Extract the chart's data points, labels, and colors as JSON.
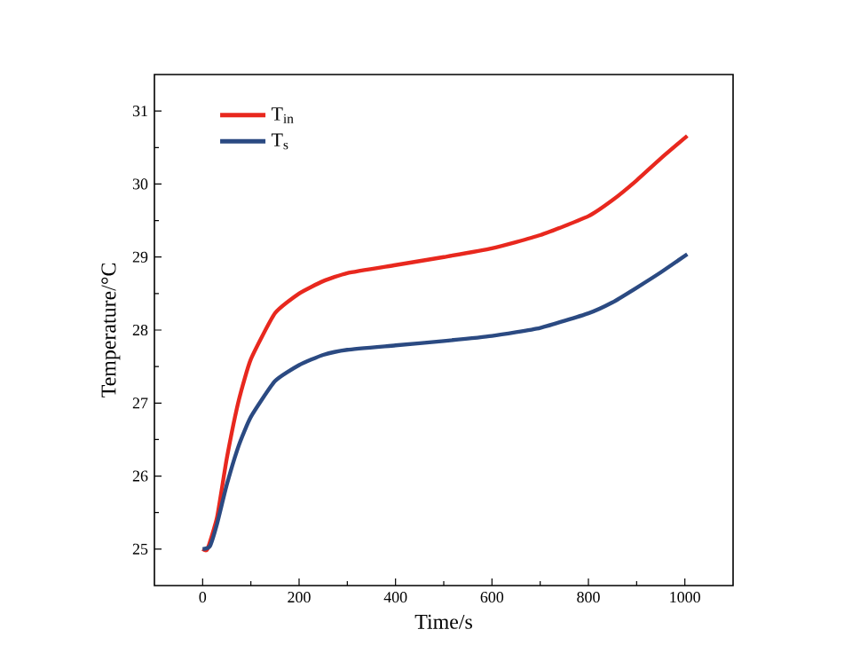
{
  "chart_data": {
    "type": "line",
    "xlabel": "Time/s",
    "ylabel": "Temperature/°C",
    "xlim": [
      -100,
      1100
    ],
    "ylim": [
      24.5,
      31.5
    ],
    "xticks": [
      0,
      200,
      400,
      600,
      800,
      1000
    ],
    "yticks": [
      25,
      26,
      27,
      28,
      29,
      30,
      31
    ],
    "legend": "top left",
    "marker": "none",
    "line_style": "solid",
    "grid": false,
    "series": [
      {
        "name": "T$_{in}$",
        "color": "#e8281e",
        "x": [
          0,
          10,
          30,
          50,
          75,
          100,
          150,
          200,
          250,
          300,
          400,
          500,
          600,
          700,
          800,
          850,
          900,
          950,
          1005
        ],
        "values": [
          25,
          25,
          25.44,
          26.24,
          27.04,
          27.6,
          28.23,
          28.5,
          28.67,
          28.78,
          28.89,
          29.0,
          29.12,
          29.3,
          29.56,
          29.78,
          30.05,
          30.35,
          30.66
        ]
      },
      {
        "name": "T$_{s}$",
        "color": "#2b4a82",
        "x": [
          0,
          15,
          30,
          50,
          75,
          100,
          150,
          200,
          250,
          300,
          400,
          500,
          600,
          700,
          800,
          850,
          900,
          950,
          1005
        ],
        "values": [
          25,
          25.04,
          25.35,
          25.88,
          26.42,
          26.81,
          27.3,
          27.52,
          27.66,
          27.73,
          27.79,
          27.85,
          27.92,
          28.03,
          28.23,
          28.38,
          28.58,
          28.79,
          29.04
        ]
      }
    ]
  }
}
